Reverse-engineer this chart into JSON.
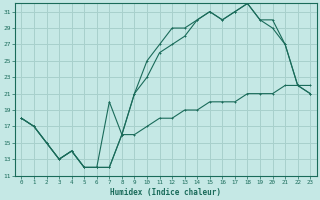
{
  "xlabel": "Humidex (Indice chaleur)",
  "background_color": "#c5e8e5",
  "grid_color": "#a8d0cc",
  "line_color": "#1a6b5a",
  "xlim": [
    -0.5,
    23.5
  ],
  "ylim": [
    11,
    32
  ],
  "yticks": [
    11,
    13,
    15,
    17,
    19,
    21,
    23,
    25,
    27,
    29,
    31
  ],
  "xticks": [
    0,
    1,
    2,
    3,
    4,
    5,
    6,
    7,
    8,
    9,
    10,
    11,
    12,
    13,
    14,
    15,
    16,
    17,
    18,
    19,
    20,
    21,
    22,
    23
  ],
  "series1_x": [
    0,
    1,
    2,
    3,
    4,
    5,
    6,
    7,
    8,
    9,
    10,
    11,
    12,
    13,
    14,
    15,
    16,
    17,
    18,
    19,
    20,
    21,
    22,
    23
  ],
  "series1_y": [
    18,
    17,
    15,
    13,
    14,
    12,
    12,
    12,
    16,
    21,
    23,
    26,
    27,
    28,
    30,
    31,
    30,
    31,
    32,
    30,
    30,
    27,
    22,
    21
  ],
  "series2_x": [
    0,
    1,
    2,
    3,
    4,
    5,
    6,
    7,
    8,
    9,
    10,
    11,
    12,
    13,
    14,
    15,
    16,
    17,
    18,
    19,
    20,
    21,
    22,
    23
  ],
  "series2_y": [
    18,
    17,
    15,
    13,
    14,
    12,
    12,
    20,
    16,
    21,
    25,
    27,
    29,
    29,
    30,
    31,
    30,
    31,
    32,
    30,
    29,
    27,
    22,
    21
  ],
  "series3_x": [
    0,
    1,
    2,
    3,
    4,
    5,
    6,
    7,
    8,
    9,
    10,
    11,
    12,
    13,
    14,
    15,
    16,
    17,
    18,
    19,
    20,
    21,
    22,
    23
  ],
  "series3_y": [
    18,
    17,
    15,
    13,
    14,
    12,
    12,
    12,
    16,
    16,
    17,
    18,
    18,
    19,
    19,
    20,
    20,
    20,
    21,
    21,
    21,
    22,
    22,
    22
  ]
}
